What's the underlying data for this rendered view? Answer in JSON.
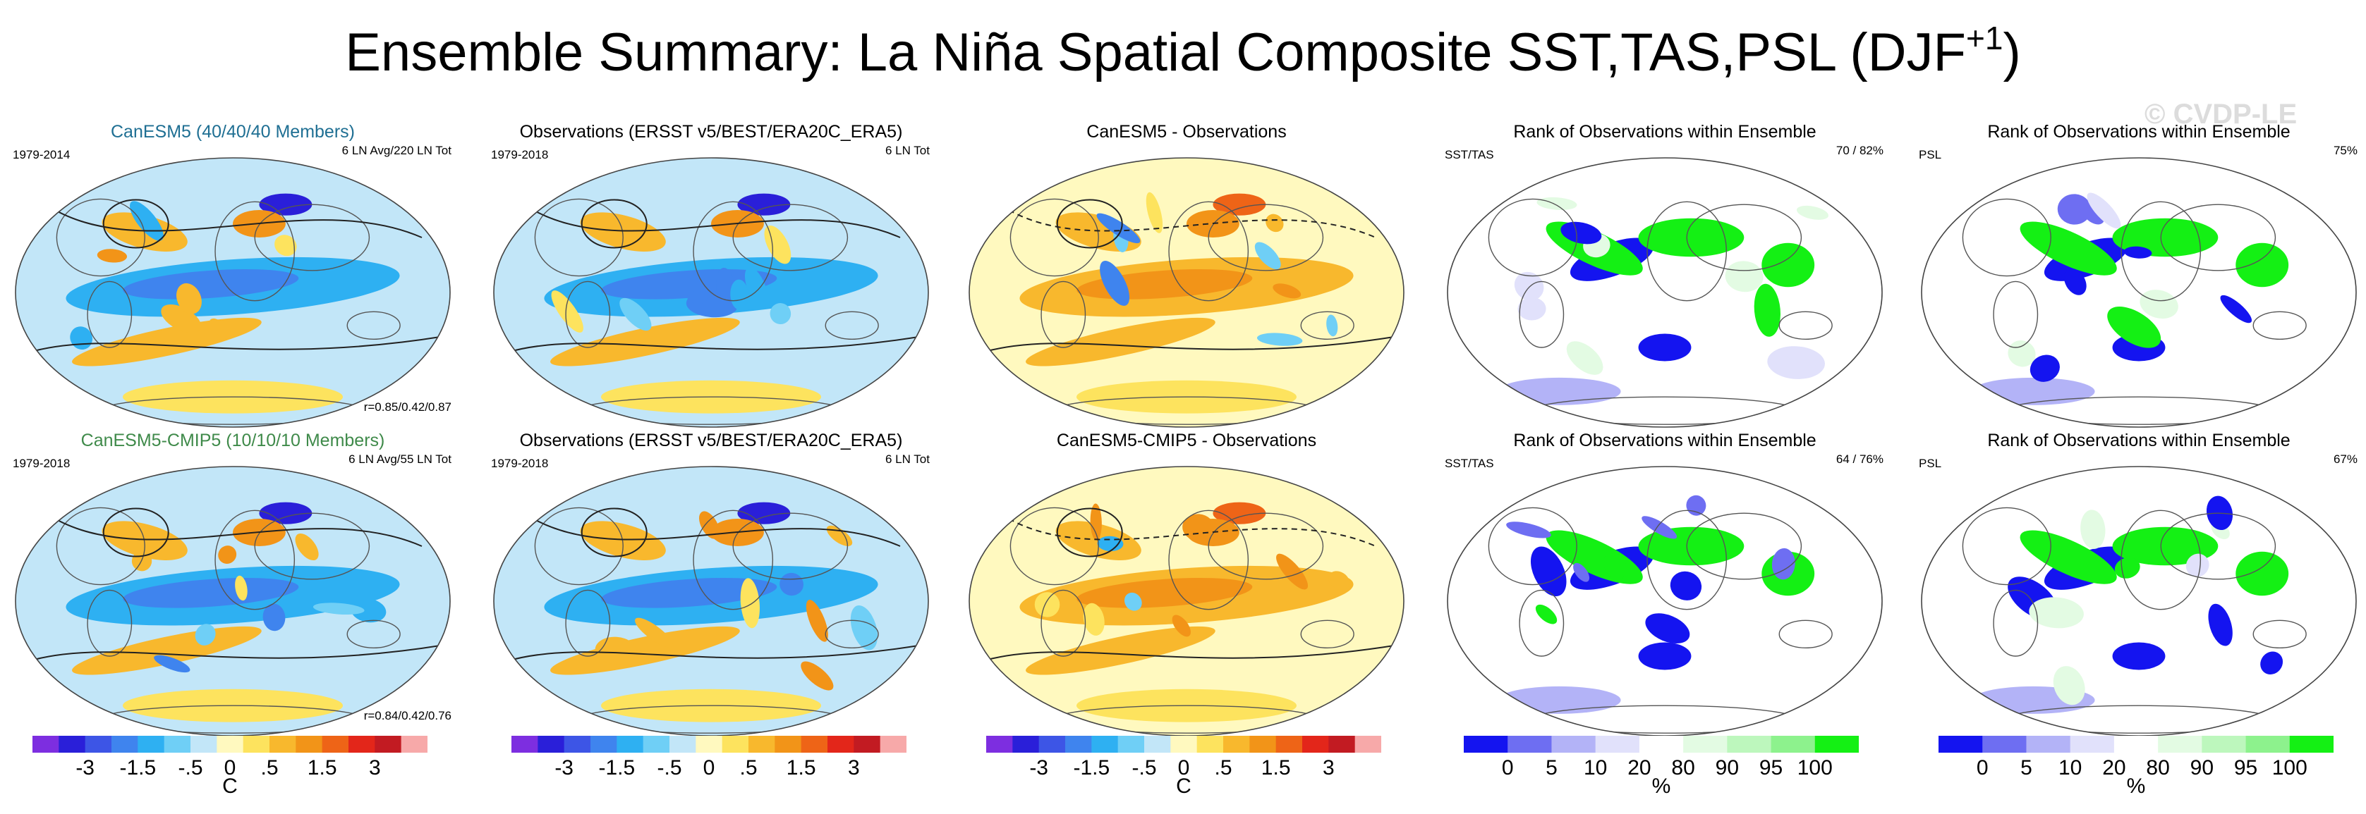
{
  "title": {
    "text": "Ensemble Summary: La Niña Spatial Composite SST,TAS,PSL (DJF",
    "superscript": "+1",
    "close": ")"
  },
  "watermark": "© CVDP-LE",
  "colors": {
    "anomaly_scale": [
      "#7d2ee0",
      "#2a1fd9",
      "#3d55e6",
      "#3f84ee",
      "#2eb0f2",
      "#6fcff6",
      "#c2e6f8",
      "#fff9bf",
      "#fde35e",
      "#f8b82d",
      "#f29418",
      "#ee6417",
      "#e3261a",
      "#c21b22",
      "#f7a9a9"
    ],
    "rank_scale": [
      "#1414f0",
      "#6e6ef2",
      "#b3b3f7",
      "#e1e1fb",
      "#ffffff",
      "#e3fbe3",
      "#bdf7bd",
      "#8df28d",
      "#14f014"
    ]
  },
  "panels": [
    {
      "title": "CanESM5 (40/40/40 Members)",
      "title_color": "#1f6f93",
      "left": "1979-2014",
      "right": "6 LN Avg/220 LN Tot",
      "corr": "r=0.85/0.42/0.87",
      "kind": "anomaly"
    },
    {
      "title": "Observations (ERSST v5/BEST/ERA20C_ERA5)",
      "title_color": "#000000",
      "left": "1979-2018",
      "right": "6 LN Tot",
      "corr": "",
      "kind": "anomaly"
    },
    {
      "title": "CanESM5 - Observations",
      "title_color": "#000000",
      "left": "",
      "right": "",
      "corr": "",
      "kind": "difference"
    },
    {
      "title": "Rank of Observations within Ensemble",
      "title_color": "#000000",
      "left": "SST/TAS",
      "right": "70 /  82%",
      "corr": "",
      "kind": "rank"
    },
    {
      "title": "Rank of Observations within Ensemble",
      "title_color": "#000000",
      "left": "PSL",
      "right": "75%",
      "corr": "",
      "kind": "rank"
    },
    {
      "title": "CanESM5-CMIP5 (10/10/10 Members)",
      "title_color": "#3f8a4a",
      "left": "1979-2018",
      "right": "6 LN Avg/55 LN Tot",
      "corr": "r=0.84/0.42/0.76",
      "kind": "anomaly"
    },
    {
      "title": "Observations (ERSST v5/BEST/ERA20C_ERA5)",
      "title_color": "#000000",
      "left": "1979-2018",
      "right": "6 LN Tot",
      "corr": "",
      "kind": "anomaly"
    },
    {
      "title": "CanESM5-CMIP5 - Observations",
      "title_color": "#000000",
      "left": "",
      "right": "",
      "corr": "",
      "kind": "difference"
    },
    {
      "title": "Rank of Observations within Ensemble",
      "title_color": "#000000",
      "left": "SST/TAS",
      "right": "64 /  76%",
      "corr": "",
      "kind": "rank"
    },
    {
      "title": "Rank of Observations within Ensemble",
      "title_color": "#000000",
      "left": "PSL",
      "right": "67%",
      "corr": "",
      "kind": "rank"
    }
  ],
  "colorbars": [
    {
      "kind": "anomaly",
      "labels": [
        "-3",
        "-1.5",
        "-.5",
        "0",
        ".5",
        "1.5",
        "3"
      ],
      "unit": "C"
    },
    {
      "kind": "anomaly",
      "labels": [
        "-3",
        "-1.5",
        "-.5",
        "0",
        ".5",
        "1.5",
        "3"
      ],
      "unit": ""
    },
    {
      "kind": "anomaly",
      "labels": [
        "-3",
        "-1.5",
        "-.5",
        "0",
        ".5",
        "1.5",
        "3"
      ],
      "unit": "C"
    },
    {
      "kind": "rank",
      "labels": [
        "0",
        "5",
        "10",
        "20",
        "80",
        "90",
        "95",
        "100"
      ],
      "unit": "%"
    },
    {
      "kind": "rank",
      "labels": [
        "0",
        "5",
        "10",
        "20",
        "80",
        "90",
        "95",
        "100"
      ],
      "unit": "%"
    }
  ],
  "chart_data": {
    "type": "heatmap",
    "title": "Ensemble Summary: La Niña Spatial Composite SST,TAS,PSL (DJF+1)",
    "anomaly_levels_C": [
      -4,
      -3,
      -2,
      -1.5,
      -1,
      -0.5,
      -0.25,
      0,
      0.25,
      0.5,
      1,
      1.5,
      2,
      3,
      4
    ],
    "anomaly_tick_labels": [
      "-3",
      "-1.5",
      "-.5",
      "0",
      ".5",
      "1.5",
      "3"
    ],
    "rank_levels_pct": [
      0,
      5,
      10,
      20,
      80,
      90,
      95,
      100
    ],
    "panels": [
      {
        "row": 1,
        "col": 1,
        "title": "CanESM5 (40/40/40 Members)",
        "period": "1979-2014",
        "events": "6 LN Avg/220 LN Tot",
        "pattern_correlation": [
          0.85,
          0.42,
          0.87
        ]
      },
      {
        "row": 1,
        "col": 2,
        "title": "Observations (ERSST v5/BEST/ERA20C_ERA5)",
        "period": "1979-2018",
        "events": "6 LN Tot"
      },
      {
        "row": 1,
        "col": 3,
        "title": "CanESM5 - Observations"
      },
      {
        "row": 1,
        "col": 4,
        "title": "Rank of Observations within Ensemble",
        "variables": "SST/TAS",
        "within_range_pct": [
          70,
          82
        ]
      },
      {
        "row": 1,
        "col": 5,
        "title": "Rank of Observations within Ensemble",
        "variables": "PSL",
        "within_range_pct": [
          75
        ]
      },
      {
        "row": 2,
        "col": 1,
        "title": "CanESM5-CMIP5 (10/10/10 Members)",
        "period": "1979-2018",
        "events": "6 LN Avg/55 LN Tot",
        "pattern_correlation": [
          0.84,
          0.42,
          0.76
        ]
      },
      {
        "row": 2,
        "col": 2,
        "title": "Observations (ERSST v5/BEST/ERA20C_ERA5)",
        "period": "1979-2018",
        "events": "6 LN Tot"
      },
      {
        "row": 2,
        "col": 3,
        "title": "CanESM5-CMIP5 - Observations"
      },
      {
        "row": 2,
        "col": 4,
        "title": "Rank of Observations within Ensemble",
        "variables": "SST/TAS",
        "within_range_pct": [
          64,
          76
        ]
      },
      {
        "row": 2,
        "col": 5,
        "title": "Rank of Observations within Ensemble",
        "variables": "PSL",
        "within_range_pct": [
          67
        ]
      }
    ]
  }
}
